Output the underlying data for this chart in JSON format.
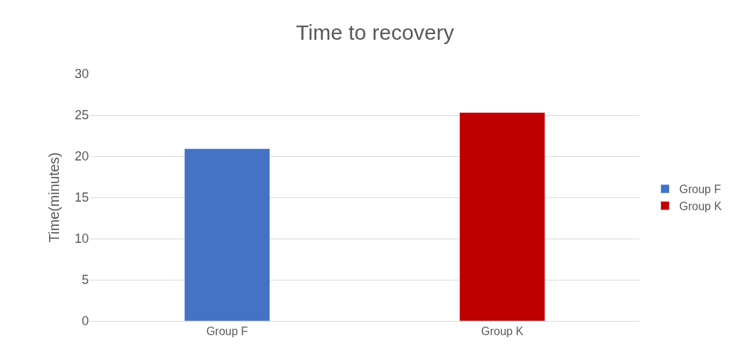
{
  "chart_data": {
    "type": "bar",
    "title": "Time to recovery",
    "ylabel": "Time(minutes)",
    "categories": [
      "Group F",
      "Group K"
    ],
    "series": [
      {
        "name": "Group F",
        "color": "#4472c4",
        "values": [
          20.9,
          null
        ]
      },
      {
        "name": "Group K",
        "color": "#c00000",
        "values": [
          null,
          25.3
        ]
      }
    ],
    "ylim": [
      0,
      30
    ],
    "yticks": [
      0,
      5,
      10,
      15,
      20,
      25,
      30
    ],
    "grid": "y",
    "legend": "right"
  }
}
